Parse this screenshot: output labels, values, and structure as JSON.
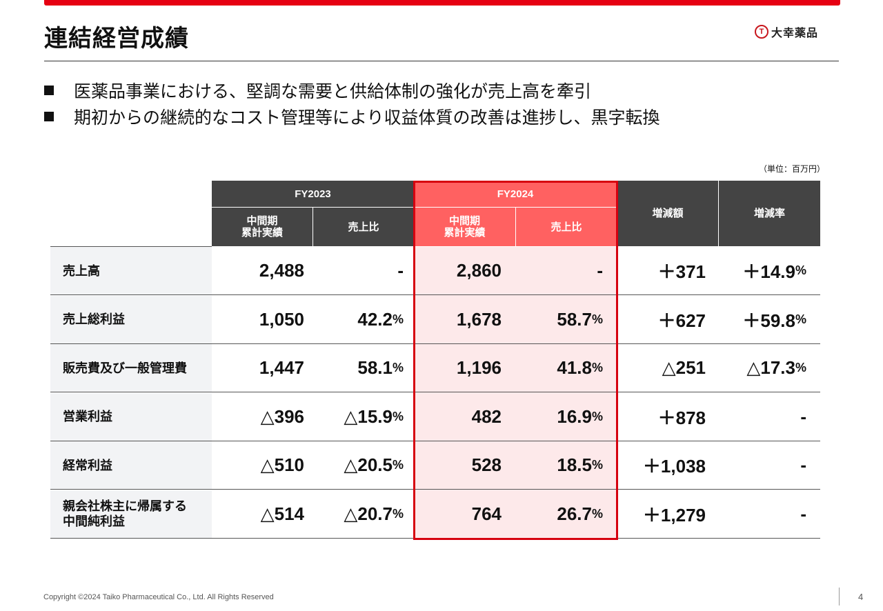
{
  "header": {
    "title": "連結経営成績",
    "logo_text": "大幸薬品",
    "logo_mark": "T"
  },
  "bullets": [
    "医薬品事業における、堅調な需要と供給体制の強化が売上高を牽引",
    "期初からの継続的なコスト管理等により収益体質の改善は進捗し、黒字転換"
  ],
  "unit_note": "（単位：百万円）",
  "table": {
    "fy2023": "FY2023",
    "fy2024": "FY2024",
    "col_interim": [
      "中間期",
      "累計実績"
    ],
    "col_ratio": "売上比",
    "col_change_amount": "増減額",
    "col_change_rate": "増減率",
    "rows": [
      {
        "label": [
          "売上高"
        ],
        "fy23": "2,488",
        "fy23_ratio": "-",
        "fy23_ratio_pct": "",
        "fy24": "2,860",
        "fy24_ratio": "-",
        "fy24_ratio_pct": "",
        "diff": "＋371",
        "rate": "＋14.9",
        "rate_pct": "%"
      },
      {
        "label": [
          "売上総利益"
        ],
        "fy23": "1,050",
        "fy23_ratio": "42.2",
        "fy23_ratio_pct": "%",
        "fy24": "1,678",
        "fy24_ratio": "58.7",
        "fy24_ratio_pct": "%",
        "diff": "＋627",
        "rate": "＋59.8",
        "rate_pct": "%"
      },
      {
        "label": [
          "販売費及び一般管理費"
        ],
        "fy23": "1,447",
        "fy23_ratio": "58.1",
        "fy23_ratio_pct": "%",
        "fy24": "1,196",
        "fy24_ratio": "41.8",
        "fy24_ratio_pct": "%",
        "diff": "△251",
        "rate": "△17.3",
        "rate_pct": "%"
      },
      {
        "label": [
          "営業利益"
        ],
        "fy23": "△396",
        "fy23_ratio": "△15.9",
        "fy23_ratio_pct": "%",
        "fy24": "482",
        "fy24_ratio": "16.9",
        "fy24_ratio_pct": "%",
        "diff": "＋878",
        "rate": "-",
        "rate_pct": ""
      },
      {
        "label": [
          "経常利益"
        ],
        "fy23": "△510",
        "fy23_ratio": "△20.5",
        "fy23_ratio_pct": "%",
        "fy24": "528",
        "fy24_ratio": "18.5",
        "fy24_ratio_pct": "%",
        "diff": "＋1,038",
        "rate": "-",
        "rate_pct": ""
      },
      {
        "label": [
          "親会社株主に帰属する",
          "中間純利益"
        ],
        "fy23": "△514",
        "fy23_ratio": "△20.7",
        "fy23_ratio_pct": "%",
        "fy24": "764",
        "fy24_ratio": "26.7",
        "fy24_ratio_pct": "%",
        "diff": "＋1,279",
        "rate": "-",
        "rate_pct": ""
      }
    ]
  },
  "footer": {
    "copyright": "Copyright ©2024   Taiko Pharmaceutical Co., Ltd. All Rights Reserved",
    "page": "4"
  }
}
